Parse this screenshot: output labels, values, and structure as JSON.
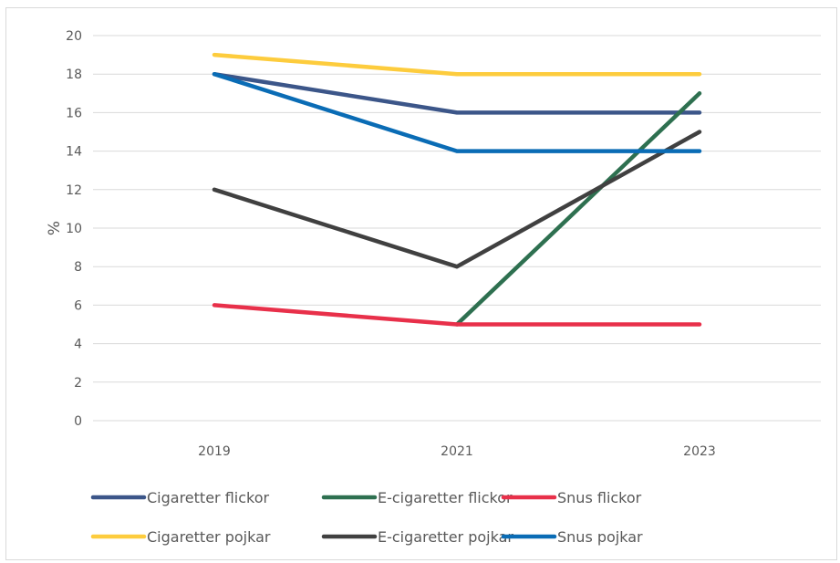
{
  "chart_data": {
    "type": "line",
    "categories": [
      "2019",
      "2021",
      "2023"
    ],
    "ylabel": "%",
    "xlabel": "",
    "ylim": [
      0,
      20
    ],
    "yticks": [
      0,
      2,
      4,
      6,
      8,
      10,
      12,
      14,
      16,
      18,
      20
    ],
    "grid": true,
    "legend_position": "bottom",
    "series": [
      {
        "name": "Cigaretter flickor",
        "color": "#3c5689",
        "values": [
          18,
          16,
          16
        ]
      },
      {
        "name": "E-cigaretter flickor",
        "color": "#2e7050",
        "values": [
          null,
          5,
          17
        ]
      },
      {
        "name": "Snus flickor",
        "color": "#e8304a",
        "values": [
          6,
          5,
          5
        ]
      },
      {
        "name": "Cigaretter pojkar",
        "color": "#fdcc3d",
        "values": [
          19,
          18,
          18
        ]
      },
      {
        "name": "E-cigaretter pojkar",
        "color": "#404040",
        "values": [
          12,
          8,
          15
        ]
      },
      {
        "name": "Snus pojkar",
        "color": "#0a6cb5",
        "values": [
          18,
          14,
          14
        ]
      }
    ]
  }
}
